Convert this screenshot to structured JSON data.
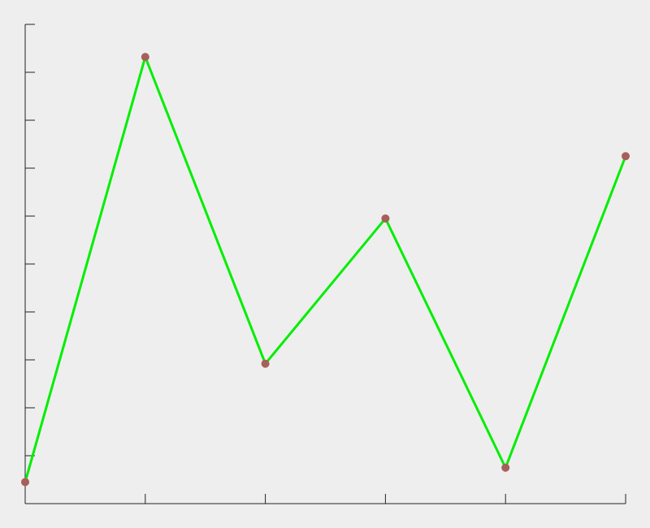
{
  "chart_data": {
    "type": "line",
    "title": "",
    "xlabel": "",
    "ylabel": "",
    "x": [
      0,
      1,
      2,
      3,
      4,
      5
    ],
    "xlim": [
      0,
      5
    ],
    "ylim": [
      0,
      10
    ],
    "x_tick_values": [
      0,
      1,
      2,
      3,
      4,
      5
    ],
    "y_tick_values": [
      0,
      1,
      2,
      3,
      4,
      5,
      6,
      7,
      8,
      9,
      10
    ],
    "tick_labels_shown": false,
    "grid": false,
    "legend": "none",
    "series": [
      {
        "values": [
          0.45,
          9.32,
          2.92,
          5.95,
          0.75,
          7.25
        ]
      }
    ],
    "colors": {
      "line": "#00ee00",
      "marker": "#a65f5a",
      "axis": "#222222",
      "background": "#eeeeee"
    }
  }
}
